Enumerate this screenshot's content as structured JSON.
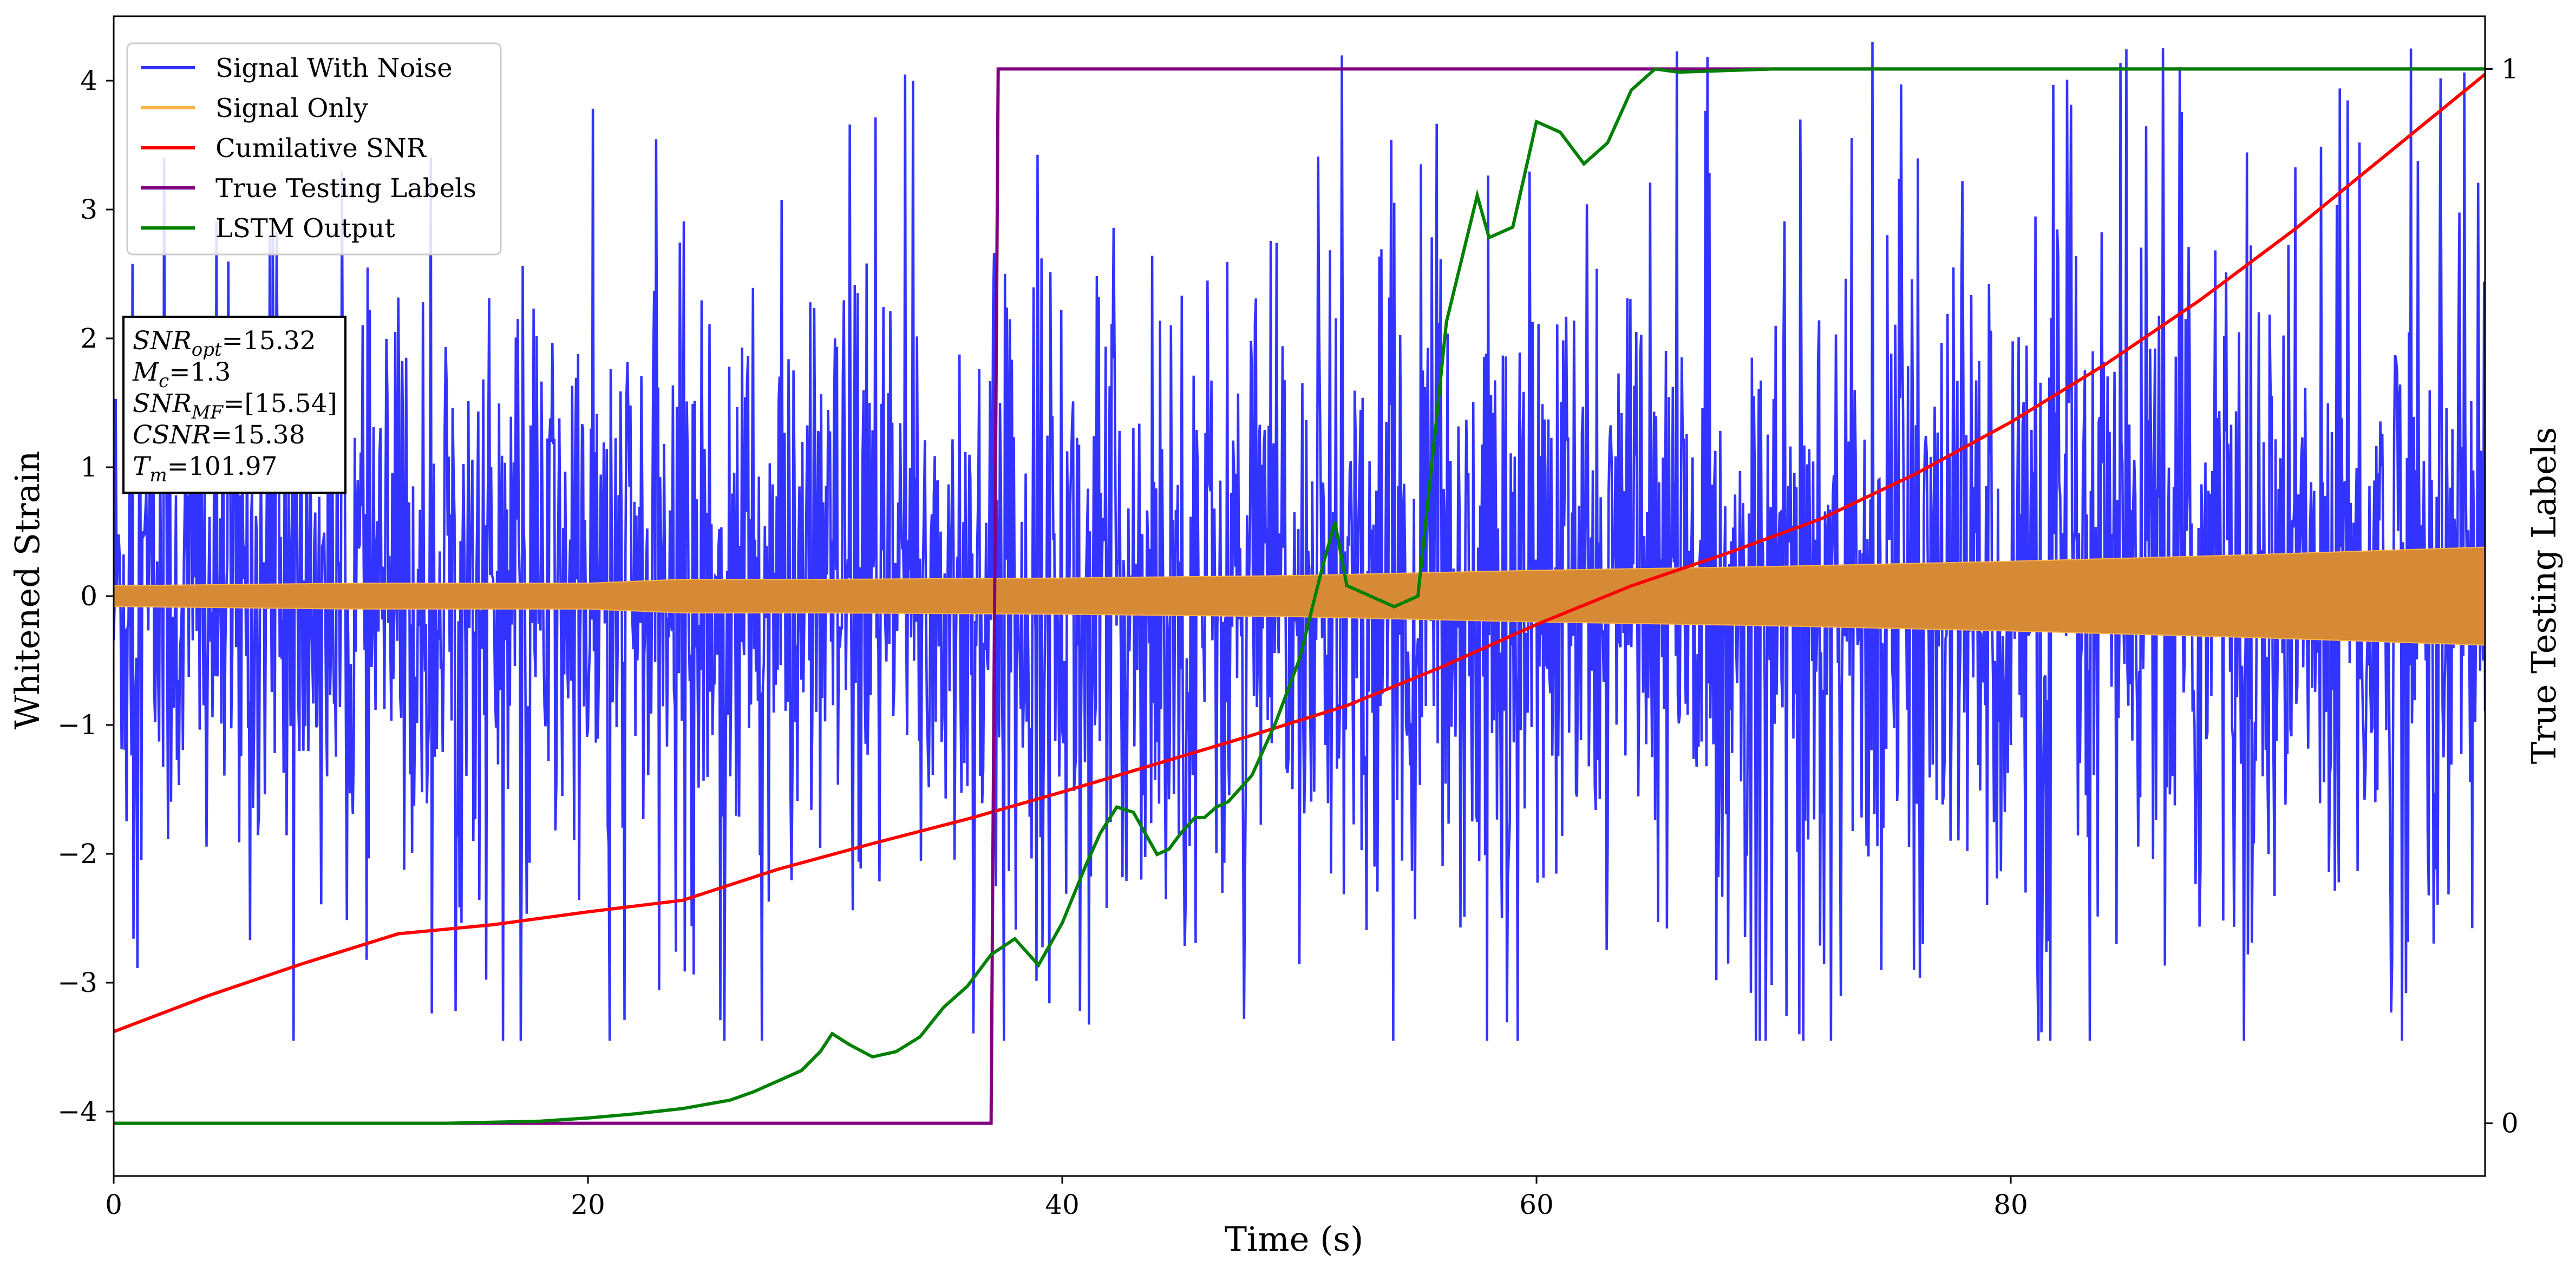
{
  "chart_data": {
    "type": "line",
    "xlabel": "Time (s)",
    "ylabel": "Whitened Strain",
    "y2label": "True Testing Labels",
    "xlim": [
      0,
      100
    ],
    "ylim": [
      -4.5,
      4.5
    ],
    "y2lim": [
      -0.05,
      1.05
    ],
    "xticks": [
      0,
      20,
      40,
      60,
      80
    ],
    "yticks": [
      -4,
      -3,
      -2,
      -1,
      0,
      1,
      2,
      3,
      4
    ],
    "y2ticks": [
      0,
      1
    ],
    "grid": false,
    "legend_position": "top-left",
    "colors": {
      "signal_with_noise": "#3333ff",
      "signal_only": "#ffb347",
      "signal_fill": "#d68a35",
      "cumulative_snr": "#ff0000",
      "true_labels": "#800080",
      "lstm_output": "#008000"
    },
    "series": [
      {
        "name": "Signal With Noise",
        "axis": "left",
        "noise_envelope": {
          "x": [
            0,
            10,
            20,
            30,
            40,
            50,
            60,
            70,
            80,
            90,
            100
          ],
          "typical_upper": [
            2.0,
            2.0,
            2.1,
            2.1,
            2.2,
            2.2,
            2.3,
            2.3,
            2.4,
            2.5,
            2.6
          ],
          "typical_lower": [
            -2.0,
            -2.0,
            -2.1,
            -2.1,
            -2.2,
            -2.2,
            -2.3,
            -2.3,
            -2.4,
            -2.5,
            -2.6
          ],
          "max": 4.3,
          "min": -3.45
        }
      },
      {
        "name": "Signal Only",
        "axis": "left",
        "amplitude_envelope": {
          "x": [
            0,
            10,
            20,
            24,
            30,
            40,
            50,
            60,
            70,
            80,
            90,
            100
          ],
          "amplitude": [
            0.08,
            0.1,
            0.1,
            0.13,
            0.13,
            0.14,
            0.16,
            0.2,
            0.23,
            0.27,
            0.32,
            0.38
          ]
        }
      },
      {
        "name": "Cumilative SNR",
        "axis": "left",
        "x": [
          0,
          4,
          8,
          12,
          16,
          20,
          24,
          28,
          32,
          36,
          40,
          44,
          48,
          52,
          56,
          60,
          64,
          68,
          72,
          76,
          80,
          84,
          88,
          92,
          96,
          100
        ],
        "values": [
          -3.38,
          -3.1,
          -2.85,
          -2.62,
          -2.55,
          -2.45,
          -2.36,
          -2.12,
          -1.92,
          -1.73,
          -1.52,
          -1.3,
          -1.08,
          -0.85,
          -0.55,
          -0.22,
          0.08,
          0.33,
          0.6,
          0.95,
          1.35,
          1.8,
          2.3,
          2.85,
          3.45,
          4.05
        ]
      },
      {
        "name": "True Testing Labels",
        "axis": "right",
        "x": [
          0,
          37.0,
          37.3,
          100
        ],
        "values": [
          0,
          0,
          1,
          1
        ]
      },
      {
        "name": "LSTM Output",
        "axis": "right",
        "x": [
          0,
          10,
          14,
          18,
          20,
          22,
          24,
          26,
          27,
          28,
          29,
          29.8,
          30.3,
          31,
          32,
          33,
          34,
          35,
          36,
          37,
          38,
          39,
          40,
          41,
          41.6,
          42.3,
          43,
          44,
          44.5,
          45,
          45.6,
          46,
          46.5,
          47,
          48,
          49,
          50,
          51,
          51.5,
          52,
          53,
          54,
          55,
          55.7,
          56.2,
          57.5,
          58,
          59,
          60,
          61,
          62,
          63,
          64,
          65,
          66,
          70,
          72,
          100
        ],
        "values": [
          0,
          0,
          0,
          0.002,
          0.005,
          0.009,
          0.014,
          0.022,
          0.03,
          0.04,
          0.05,
          0.068,
          0.085,
          0.075,
          0.063,
          0.068,
          0.082,
          0.11,
          0.13,
          0.16,
          0.175,
          0.15,
          0.19,
          0.245,
          0.275,
          0.3,
          0.295,
          0.255,
          0.26,
          0.275,
          0.29,
          0.29,
          0.3,
          0.305,
          0.33,
          0.38,
          0.44,
          0.53,
          0.57,
          0.51,
          0.5,
          0.49,
          0.5,
          0.65,
          0.76,
          0.88,
          0.84,
          0.85,
          0.95,
          0.94,
          0.91,
          0.93,
          0.98,
          1.0,
          0.997,
          1.0,
          1.0,
          1.0
        ]
      }
    ],
    "annotation_lines": [
      {
        "sym": "SNR",
        "sub": "opt",
        "value": "=15.32"
      },
      {
        "sym": "M",
        "sub": "c",
        "value": "=1.3"
      },
      {
        "sym": "SNR",
        "sub": "MF",
        "value": "=[15.54]"
      },
      {
        "sym": "CSNR",
        "sub": "",
        "value": "=15.38"
      },
      {
        "sym": "T",
        "sub": "m",
        "value": "=101.97"
      }
    ]
  }
}
